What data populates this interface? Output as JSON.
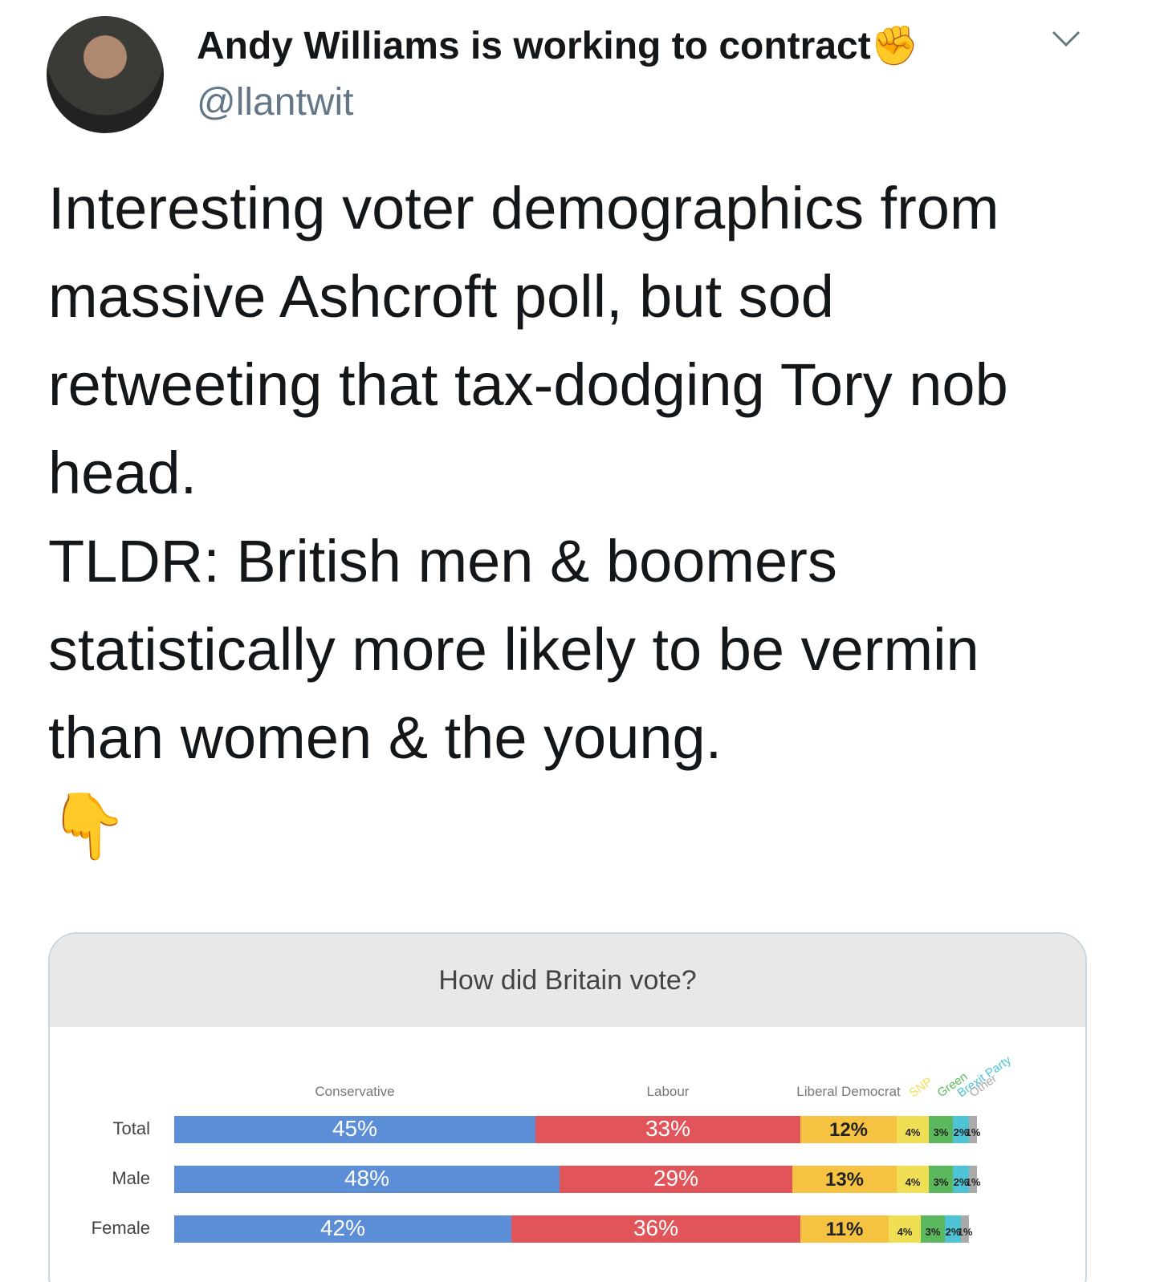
{
  "author": {
    "name": "Andy Williams is working to contract✊",
    "handle": "@llantwit"
  },
  "tweet": {
    "paragraphs": [
      "Interesting voter demographics from massive Ashcroft poll, but sod retweeting that tax-dodging Tory nob head.",
      "TLDR: British men & boomers statistically more likely to be vermin than women & the young."
    ],
    "emoji": "👇"
  },
  "chart_data": {
    "type": "stacked-bar",
    "title": "How did Britain vote?",
    "categories": [
      "Total",
      "Male",
      "Female"
    ],
    "series": [
      {
        "name": "Conservative",
        "color": "#5b8ed6",
        "values": [
          45,
          48,
          42
        ],
        "value_labels": [
          "45%",
          "48%",
          "42%"
        ]
      },
      {
        "name": "Labour",
        "color": "#e0545a",
        "values": [
          33,
          29,
          36
        ],
        "value_labels": [
          "33%",
          "29%",
          "36%"
        ]
      },
      {
        "name": "Liberal Democrat",
        "color": "#f5c242",
        "values": [
          12,
          13,
          11
        ],
        "value_labels": [
          "12%",
          "13%",
          "11%"
        ]
      },
      {
        "name": "SNP",
        "color": "#f0df55",
        "values": [
          4,
          4,
          4
        ],
        "value_labels": [
          "4%",
          "4%",
          "4%"
        ]
      },
      {
        "name": "Green",
        "color": "#5cb85c",
        "values": [
          3,
          3,
          3
        ],
        "value_labels": [
          "3%",
          "3%",
          "3%"
        ]
      },
      {
        "name": "Brexit Party",
        "color": "#4ec3d6",
        "values": [
          2,
          2,
          2
        ],
        "value_labels": [
          "2%",
          "2%",
          "2%"
        ]
      },
      {
        "name": "Other",
        "color": "#aaaaaa",
        "values": [
          1,
          1,
          1
        ],
        "value_labels": [
          "1%",
          "1%",
          "1%"
        ]
      }
    ]
  }
}
